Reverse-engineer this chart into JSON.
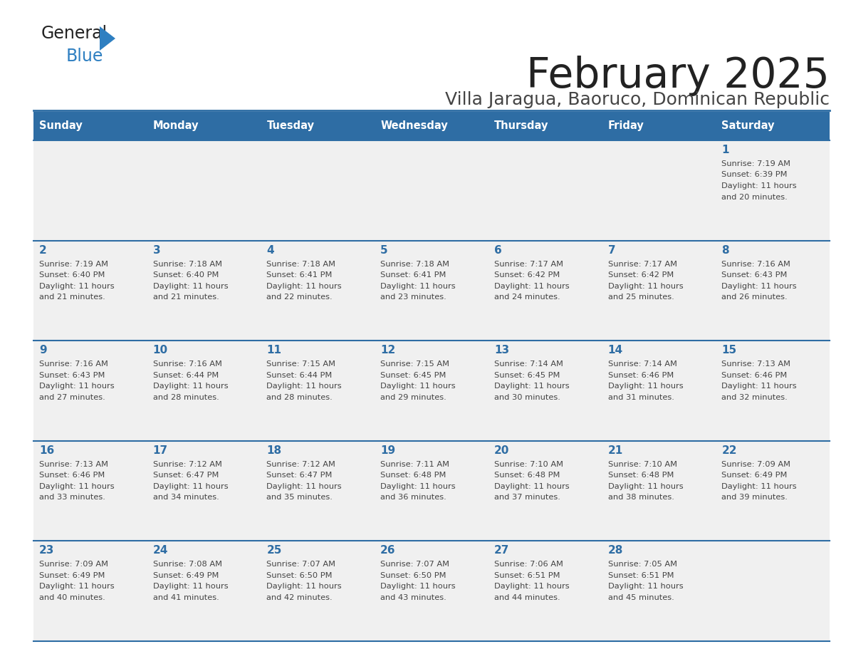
{
  "title": "February 2025",
  "subtitle": "Villa Jaragua, Baoruco, Dominican Republic",
  "days_of_week": [
    "Sunday",
    "Monday",
    "Tuesday",
    "Wednesday",
    "Thursday",
    "Friday",
    "Saturday"
  ],
  "header_bg": "#2E6DA4",
  "header_text": "#FFFFFF",
  "cell_bg": "#F0F0F0",
  "day_num_color": "#2E6DA4",
  "text_color": "#444444",
  "line_color": "#2E6DA4",
  "logo_general_color": "#222222",
  "logo_blue_color": "#2E7FC1",
  "calendar_data": [
    [
      null,
      null,
      null,
      null,
      null,
      null,
      1
    ],
    [
      2,
      3,
      4,
      5,
      6,
      7,
      8
    ],
    [
      9,
      10,
      11,
      12,
      13,
      14,
      15
    ],
    [
      16,
      17,
      18,
      19,
      20,
      21,
      22
    ],
    [
      23,
      24,
      25,
      26,
      27,
      28,
      null
    ]
  ],
  "sunrise_data": {
    "1": "7:19 AM",
    "2": "7:19 AM",
    "3": "7:18 AM",
    "4": "7:18 AM",
    "5": "7:18 AM",
    "6": "7:17 AM",
    "7": "7:17 AM",
    "8": "7:16 AM",
    "9": "7:16 AM",
    "10": "7:16 AM",
    "11": "7:15 AM",
    "12": "7:15 AM",
    "13": "7:14 AM",
    "14": "7:14 AM",
    "15": "7:13 AM",
    "16": "7:13 AM",
    "17": "7:12 AM",
    "18": "7:12 AM",
    "19": "7:11 AM",
    "20": "7:10 AM",
    "21": "7:10 AM",
    "22": "7:09 AM",
    "23": "7:09 AM",
    "24": "7:08 AM",
    "25": "7:07 AM",
    "26": "7:07 AM",
    "27": "7:06 AM",
    "28": "7:05 AM"
  },
  "sunset_data": {
    "1": "6:39 PM",
    "2": "6:40 PM",
    "3": "6:40 PM",
    "4": "6:41 PM",
    "5": "6:41 PM",
    "6": "6:42 PM",
    "7": "6:42 PM",
    "8": "6:43 PM",
    "9": "6:43 PM",
    "10": "6:44 PM",
    "11": "6:44 PM",
    "12": "6:45 PM",
    "13": "6:45 PM",
    "14": "6:46 PM",
    "15": "6:46 PM",
    "16": "6:46 PM",
    "17": "6:47 PM",
    "18": "6:47 PM",
    "19": "6:48 PM",
    "20": "6:48 PM",
    "21": "6:48 PM",
    "22": "6:49 PM",
    "23": "6:49 PM",
    "24": "6:49 PM",
    "25": "6:50 PM",
    "26": "6:50 PM",
    "27": "6:51 PM",
    "28": "6:51 PM"
  },
  "daylight_minutes": {
    "1": 20,
    "2": 21,
    "3": 21,
    "4": 22,
    "5": 23,
    "6": 24,
    "7": 25,
    "8": 26,
    "9": 27,
    "10": 28,
    "11": 28,
    "12": 29,
    "13": 30,
    "14": 31,
    "15": 32,
    "16": 33,
    "17": 34,
    "18": 35,
    "19": 36,
    "20": 37,
    "21": 38,
    "22": 39,
    "23": 40,
    "24": 41,
    "25": 42,
    "26": 43,
    "27": 44,
    "28": 45
  }
}
